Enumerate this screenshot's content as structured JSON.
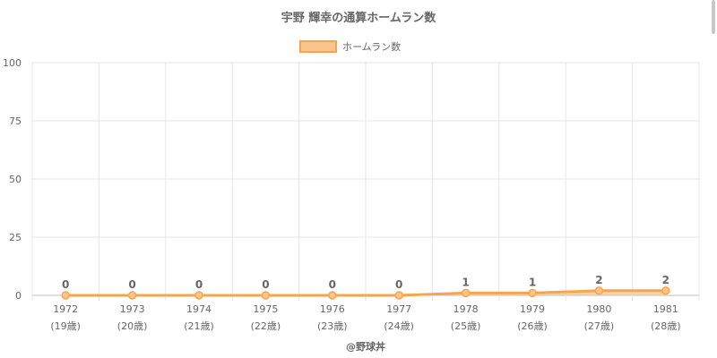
{
  "chart_data": {
    "type": "area",
    "title": "宇野 輝幸の通算ホームラン数",
    "categories": [
      "1972",
      "1973",
      "1974",
      "1975",
      "1976",
      "1977",
      "1978",
      "1979",
      "1980",
      "1981"
    ],
    "ages": [
      "(19歳)",
      "(20歳)",
      "(21歳)",
      "(22歳)",
      "(23歳)",
      "(24歳)",
      "(25歳)",
      "(26歳)",
      "(27歳)",
      "(28歳)"
    ],
    "series": [
      {
        "name": "ホームラン数",
        "values": [
          0,
          0,
          0,
          0,
          0,
          0,
          1,
          1,
          2,
          2
        ]
      }
    ],
    "ylim": [
      0,
      100
    ],
    "yticks": [
      0,
      25,
      50,
      75,
      100
    ],
    "grid": true,
    "legend_position": "top-center",
    "credit": "@野球丼",
    "colors": {
      "line": "#f7a54a",
      "fill": "#fbc58f",
      "grid": "#e6e6e6",
      "axis": "#bdbdbd",
      "text": "#666666"
    }
  }
}
